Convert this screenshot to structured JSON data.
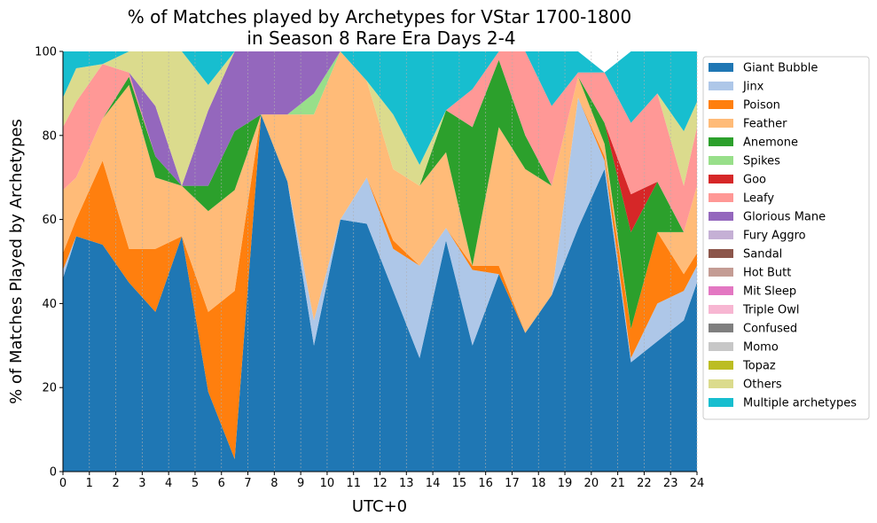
{
  "chart_data": {
    "type": "area",
    "stacked": true,
    "title_line1": "% of Matches played by Archetypes for VStar 1700-1800",
    "title_line2": "in Season 8 Rare Era Days 2-4",
    "xlabel": "UTC+0",
    "ylabel": "% of Matches Played by Archetypes",
    "xlim": [
      0,
      24
    ],
    "ylim": [
      0,
      100
    ],
    "xticks": [
      0,
      1,
      2,
      3,
      4,
      5,
      6,
      7,
      8,
      9,
      10,
      11,
      12,
      13,
      14,
      15,
      16,
      17,
      18,
      19,
      20,
      21,
      22,
      23,
      24
    ],
    "yticks": [
      0,
      20,
      40,
      60,
      80,
      100
    ],
    "grid": "vertical dashed",
    "legend_position": "right outside",
    "x": [
      0,
      0.5,
      1.5,
      2.5,
      3.5,
      4.5,
      5.5,
      6.5,
      7.5,
      8.5,
      9.5,
      10.5,
      11.5,
      12.5,
      13.5,
      14.5,
      15.5,
      16.5,
      17.5,
      18.5,
      19.5,
      20.5,
      21.5,
      22.5,
      23.5,
      24
    ],
    "series": [
      {
        "name": "Giant Bubble",
        "color": "#1f77b4",
        "values": [
          46,
          56,
          54,
          45,
          38,
          56,
          19,
          3,
          85,
          69,
          30,
          60,
          59,
          43,
          27,
          55,
          30,
          47,
          33,
          42,
          58,
          72,
          26,
          31,
          36,
          45
        ]
      },
      {
        "name": "Jinx",
        "color": "#aec7e8",
        "values": [
          2,
          0,
          0,
          0,
          0,
          0,
          0,
          0,
          0,
          0,
          6,
          0,
          11,
          10,
          22,
          3,
          18,
          0,
          0,
          0,
          31,
          2,
          1,
          9,
          7,
          4
        ]
      },
      {
        "name": "Poison",
        "color": "#ff7f0e",
        "values": [
          4,
          4,
          20,
          8,
          15,
          0,
          19,
          40,
          0,
          0,
          0,
          0,
          0,
          2,
          0,
          0,
          1,
          2,
          0,
          0,
          0,
          1,
          7,
          17,
          4,
          3
        ]
      },
      {
        "name": "Feather",
        "color": "#ffbb78",
        "values": [
          15,
          10,
          10,
          39,
          17,
          12,
          24,
          24,
          0,
          16,
          49,
          40,
          23,
          17,
          19,
          18,
          0,
          33,
          39,
          26,
          5,
          3,
          0,
          0,
          10,
          16
        ]
      },
      {
        "name": "Anemone",
        "color": "#2ca02c",
        "values": [
          0,
          0,
          0,
          2,
          5,
          0,
          6,
          14,
          0,
          0,
          0,
          0,
          0,
          0,
          0,
          10,
          33,
          16,
          8,
          0,
          0,
          5,
          23,
          12,
          0,
          0
        ]
      },
      {
        "name": "Spikes",
        "color": "#98df8a",
        "values": [
          0,
          0,
          0,
          0,
          0,
          0,
          0,
          0,
          0,
          0,
          5,
          0,
          0,
          0,
          0,
          0,
          0,
          0,
          0,
          0,
          0,
          0,
          0,
          0,
          0,
          0
        ]
      },
      {
        "name": "Goo",
        "color": "#d62728",
        "values": [
          0,
          0,
          0,
          0,
          0,
          0,
          0,
          0,
          0,
          0,
          0,
          0,
          0,
          0,
          0,
          0,
          0,
          0,
          0,
          0,
          0,
          0,
          9,
          0,
          0,
          0
        ]
      },
      {
        "name": "Leafy",
        "color": "#ff9896",
        "values": [
          15,
          18,
          13,
          1,
          0,
          0,
          0,
          0,
          0,
          0,
          0,
          0,
          0,
          0,
          0,
          0,
          9,
          2,
          20,
          19,
          1,
          12,
          17,
          21,
          11,
          14
        ]
      },
      {
        "name": "Glorious Mane",
        "color": "#9467bd",
        "values": [
          0,
          0,
          0,
          0,
          12,
          0,
          18,
          19,
          15,
          15,
          10,
          0,
          0,
          0,
          0,
          0,
          0,
          0,
          0,
          0,
          0,
          0,
          0,
          0,
          0,
          0
        ]
      },
      {
        "name": "Fury Aggro",
        "color": "#c5b0d5",
        "values": [
          0,
          0,
          0,
          0,
          0,
          0,
          0,
          0,
          0,
          0,
          0,
          0,
          0,
          0,
          0,
          0,
          0,
          0,
          0,
          0,
          0,
          0,
          0,
          0,
          0,
          0
        ]
      },
      {
        "name": "Sandal",
        "color": "#8c564b",
        "values": [
          0,
          0,
          0,
          0,
          0,
          0,
          0,
          0,
          0,
          0,
          0,
          0,
          0,
          0,
          0,
          0,
          0,
          0,
          0,
          0,
          0,
          0,
          0,
          0,
          0,
          0
        ]
      },
      {
        "name": "Hot Butt",
        "color": "#c49c94",
        "values": [
          0,
          0,
          0,
          0,
          0,
          0,
          0,
          0,
          0,
          0,
          0,
          0,
          0,
          0,
          0,
          0,
          0,
          0,
          0,
          0,
          0,
          0,
          0,
          0,
          0,
          0
        ]
      },
      {
        "name": "Mit Sleep",
        "color": "#e377c2",
        "values": [
          0,
          0,
          0,
          0,
          0,
          0,
          0,
          0,
          0,
          0,
          0,
          0,
          0,
          0,
          0,
          0,
          0,
          0,
          0,
          0,
          0,
          0,
          0,
          0,
          0,
          0
        ]
      },
      {
        "name": "Triple Owl",
        "color": "#f7b6d2",
        "values": [
          0,
          0,
          0,
          0,
          0,
          0,
          0,
          0,
          0,
          0,
          0,
          0,
          0,
          0,
          0,
          0,
          0,
          0,
          0,
          0,
          0,
          0,
          0,
          0,
          0,
          0
        ]
      },
      {
        "name": "Confused",
        "color": "#7f7f7f",
        "values": [
          0,
          0,
          0,
          0,
          0,
          0,
          0,
          0,
          0,
          0,
          0,
          0,
          0,
          0,
          0,
          0,
          0,
          0,
          0,
          0,
          0,
          0,
          0,
          0,
          0,
          0
        ]
      },
      {
        "name": "Momo",
        "color": "#c7c7c7",
        "values": [
          0,
          0,
          0,
          0,
          0,
          0,
          0,
          0,
          0,
          0,
          0,
          0,
          0,
          0,
          0,
          0,
          0,
          0,
          0,
          0,
          0,
          0,
          0,
          0,
          0,
          0
        ]
      },
      {
        "name": "Topaz",
        "color": "#bcbd22",
        "values": [
          0,
          0,
          0,
          0,
          0,
          0,
          0,
          0,
          0,
          0,
          0,
          0,
          0,
          0,
          0,
          0,
          0,
          0,
          0,
          0,
          0,
          0,
          0,
          0,
          0,
          0
        ]
      },
      {
        "name": "Others",
        "color": "#dbdb8d",
        "values": [
          7,
          8,
          0,
          5,
          13,
          32,
          6,
          0,
          0,
          0,
          0,
          0,
          0,
          13,
          5,
          0,
          0,
          0,
          0,
          0,
          0,
          0,
          0,
          0,
          13,
          6
        ]
      },
      {
        "name": "Multiple archetypes",
        "color": "#17becf",
        "values": [
          11,
          4,
          3,
          0,
          0,
          0,
          8,
          0,
          0,
          0,
          0,
          0,
          7,
          15,
          27,
          14,
          9,
          0,
          0,
          13,
          5,
          0,
          17,
          10,
          19,
          12
        ]
      }
    ]
  }
}
